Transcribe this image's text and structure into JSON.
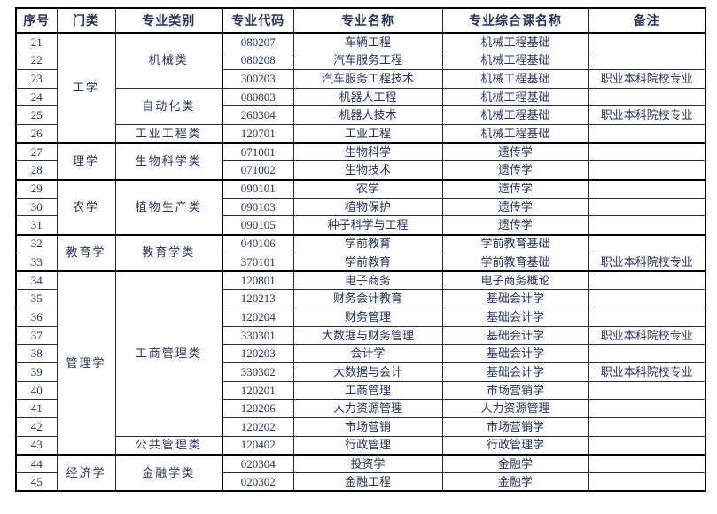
{
  "colors": {
    "text": "#263357",
    "border": "#2b2b2b",
    "heavy_border": "#000000",
    "background": "#ffffff"
  },
  "table": {
    "columns": [
      "序号",
      "门类",
      "专业类别",
      "专业代码",
      "专业名称",
      "专业综合课名称",
      "备注"
    ],
    "rows": [
      {
        "no": "21",
        "discipline": "工学",
        "discipline_span": 6,
        "category": "机械类",
        "category_span": 3,
        "code": "080207",
        "major": "车辆工程",
        "course": "机械工程基础",
        "note": "",
        "group_start": true
      },
      {
        "no": "22",
        "code": "080208",
        "major": "汽车服务工程",
        "course": "机械工程基础",
        "note": ""
      },
      {
        "no": "23",
        "code": "300203",
        "major": "汽车服务工程技术",
        "course": "机械工程基础",
        "note": "职业本科院校专业"
      },
      {
        "no": "24",
        "category": "自动化类",
        "category_span": 2,
        "code": "080803",
        "major": "机器人工程",
        "course": "机械工程基础",
        "note": ""
      },
      {
        "no": "25",
        "code": "260304",
        "major": "机器人技术",
        "course": "机械工程基础",
        "note": "职业本科院校专业"
      },
      {
        "no": "26",
        "category": "工业工程类",
        "category_span": 1,
        "code": "120701",
        "major": "工业工程",
        "course": "机械工程基础",
        "note": ""
      },
      {
        "no": "27",
        "discipline": "理学",
        "discipline_span": 2,
        "category": "生物科学类",
        "category_span": 2,
        "code": "071001",
        "major": "生物科学",
        "course": "遗传学",
        "note": "",
        "group_start": true
      },
      {
        "no": "28",
        "code": "071002",
        "major": "生物技术",
        "course": "遗传学",
        "note": ""
      },
      {
        "no": "29",
        "discipline": "农学",
        "discipline_span": 3,
        "category": "植物生产类",
        "category_span": 3,
        "code": "090101",
        "major": "农学",
        "course": "遗传学",
        "note": "",
        "group_start": true
      },
      {
        "no": "30",
        "code": "090103",
        "major": "植物保护",
        "course": "遗传学",
        "note": ""
      },
      {
        "no": "31",
        "code": "090105",
        "major": "种子科学与工程",
        "course": "遗传学",
        "note": ""
      },
      {
        "no": "32",
        "discipline": "教育学",
        "discipline_span": 2,
        "category": "教育学类",
        "category_span": 2,
        "code": "040106",
        "major": "学前教育",
        "course": "学前教育基础",
        "note": "",
        "group_start": true
      },
      {
        "no": "33",
        "code": "370101",
        "major": "学前教育",
        "course": "学前教育基础",
        "note": "职业本科院校专业"
      },
      {
        "no": "34",
        "discipline": "管理学",
        "discipline_span": 10,
        "category": "工商管理类",
        "category_span": 9,
        "code": "120801",
        "major": "电子商务",
        "course": "电子商务概论",
        "note": "",
        "group_start": true
      },
      {
        "no": "35",
        "code": "120213",
        "major": "财务会计教育",
        "course": "基础会计学",
        "note": ""
      },
      {
        "no": "36",
        "code": "120204",
        "major": "财务管理",
        "course": "基础会计学",
        "note": ""
      },
      {
        "no": "37",
        "code": "330301",
        "major": "大数据与财务管理",
        "course": "基础会计学",
        "note": "职业本科院校专业"
      },
      {
        "no": "38",
        "code": "120203",
        "major": "会计学",
        "course": "基础会计学",
        "note": ""
      },
      {
        "no": "39",
        "code": "330302",
        "major": "大数据与会计",
        "course": "基础会计学",
        "note": "职业本科院校专业"
      },
      {
        "no": "40",
        "code": "120201",
        "major": "工商管理",
        "course": "市场营销学",
        "note": ""
      },
      {
        "no": "41",
        "code": "120206",
        "major": "人力资源管理",
        "course": "人力资源管理",
        "note": ""
      },
      {
        "no": "42",
        "code": "120202",
        "major": "市场营销",
        "course": "市场营销学",
        "note": ""
      },
      {
        "no": "43",
        "category": "公共管理类",
        "category_span": 1,
        "code": "120402",
        "major": "行政管理",
        "course": "行政管理学",
        "note": ""
      },
      {
        "no": "44",
        "discipline": "经济学",
        "discipline_span": 2,
        "category": "金融学类",
        "category_span": 2,
        "code": "020304",
        "major": "投资学",
        "course": "金融学",
        "note": "",
        "group_start": true
      },
      {
        "no": "45",
        "code": "020302",
        "major": "金融工程",
        "course": "金融学",
        "note": ""
      }
    ]
  }
}
